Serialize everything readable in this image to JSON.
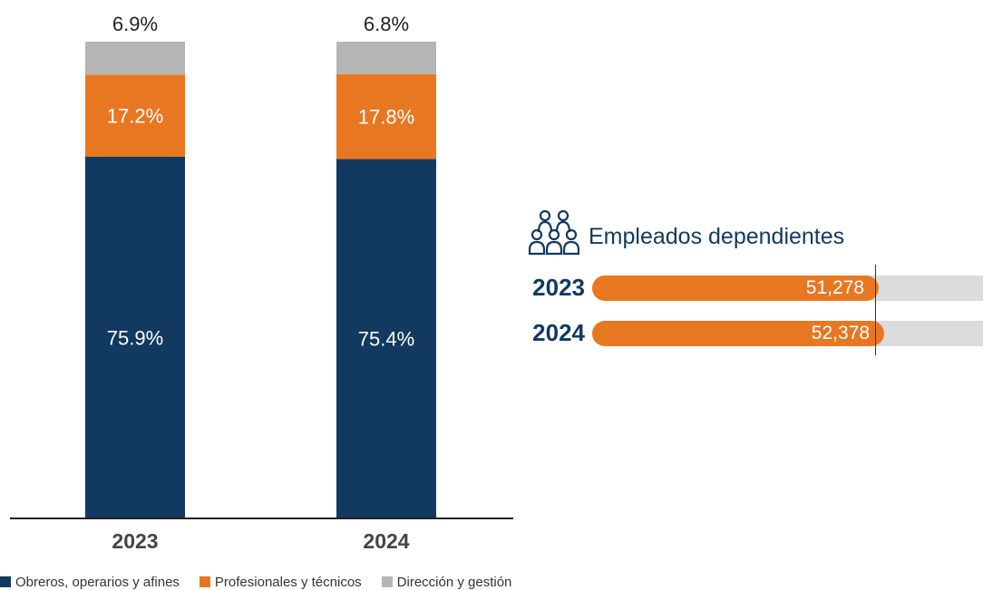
{
  "chart_data": {
    "type": "bar",
    "stacked": true,
    "categories": [
      "2023",
      "2024"
    ],
    "series": [
      {
        "name": "Obreros, operarios y afines",
        "values": [
          75.9,
          75.4
        ],
        "labels": [
          "75.9%",
          "75.4%"
        ],
        "color": "#12395f"
      },
      {
        "name": "Profesionales y técnicos",
        "values": [
          17.2,
          17.8
        ],
        "labels": [
          "17.2%",
          "17.8%"
        ],
        "color": "#e87722"
      },
      {
        "name": "Dirección y gestión",
        "values": [
          6.9,
          6.8
        ],
        "labels": [
          "6.9%",
          "6.8%"
        ],
        "color": "#b5b5b5"
      }
    ],
    "ylim": [
      0,
      100
    ],
    "grid": false,
    "legend": "bottom-left"
  },
  "employees": {
    "title": "Empleados dependientes",
    "icon": "people-group-icon",
    "rows": [
      {
        "year": "2023",
        "value": 51278,
        "label": "51,278"
      },
      {
        "year": "2024",
        "value": 52378,
        "label": "52,378"
      }
    ],
    "max": 70000,
    "fill_color": "#e87722",
    "track_color": "#dcdcdc"
  }
}
